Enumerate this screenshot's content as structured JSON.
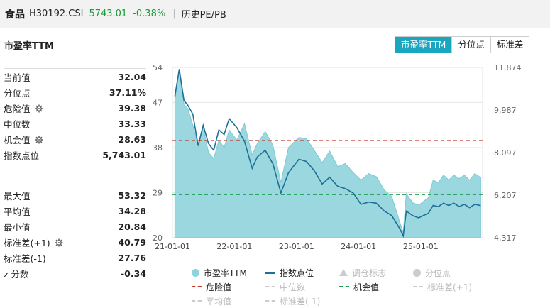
{
  "header": {
    "name": "食品",
    "code": "H30192.CSI",
    "price": "5743.01",
    "change": "-0.38%",
    "separator": "|",
    "metric": "历史PE/PB"
  },
  "panel": {
    "title": "市盈率TTM",
    "tabs": [
      {
        "label": "市盈率TTM",
        "active": true
      },
      {
        "label": "分位点",
        "active": false
      },
      {
        "label": "标准差",
        "active": false
      }
    ]
  },
  "stats_top": [
    {
      "label": "当前值",
      "value": "32.04",
      "gear": false
    },
    {
      "label": "分位点",
      "value": "37.11%",
      "gear": false
    },
    {
      "label": "危险值",
      "value": "39.38",
      "gear": true
    },
    {
      "label": "中位数",
      "value": "33.33",
      "gear": false
    },
    {
      "label": "机会值",
      "value": "28.63",
      "gear": true
    },
    {
      "label": "指数点位",
      "value": "5,743.01",
      "gear": false
    }
  ],
  "stats_bottom": [
    {
      "label": "最大值",
      "value": "53.32",
      "gear": false
    },
    {
      "label": "平均值",
      "value": "34.28",
      "gear": false
    },
    {
      "label": "最小值",
      "value": "20.84",
      "gear": false
    },
    {
      "label": "标准差(+1)",
      "value": "40.79",
      "gear": true
    },
    {
      "label": "标准差(-1)",
      "value": "27.76",
      "gear": false
    },
    {
      "label": "z 分数",
      "value": "-0.34",
      "gear": false
    }
  ],
  "legend": [
    [
      {
        "label": "市盈率TTM",
        "kind": "circle",
        "color": "#8fd3dc",
        "dim": false
      },
      {
        "label": "指数点位",
        "kind": "line",
        "color": "#1f6f96",
        "dim": false
      },
      {
        "label": "调仓标志",
        "kind": "triangle",
        "color": "#cccccc",
        "dim": true
      },
      {
        "label": "分位点",
        "kind": "circle",
        "color": "#cccccc",
        "dim": true
      }
    ],
    [
      {
        "label": "危险值",
        "kind": "dash",
        "color": "#c0392b",
        "dim": false
      },
      {
        "label": "中位数",
        "kind": "dash",
        "color": "#cccccc",
        "dim": true
      },
      {
        "label": "机会值",
        "kind": "dash",
        "color": "#1e9e50",
        "dim": false
      },
      {
        "label": "标准差(+1)",
        "kind": "dash",
        "color": "#cccccc",
        "dim": true
      }
    ],
    [
      {
        "label": "平均值",
        "kind": "dash",
        "color": "#cccccc",
        "dim": true
      },
      {
        "label": "标准差(-1)",
        "kind": "dash",
        "color": "#cccccc",
        "dim": true
      }
    ]
  ],
  "chart_data": {
    "type": "area",
    "x_ticks": [
      "21-01-01",
      "22-01-01",
      "23-01-01",
      "24-01-01",
      "25-01-01"
    ],
    "y_left_ticks": [
      "54",
      "47",
      "38",
      "29",
      "20"
    ],
    "y_right_ticks": [
      "11,874",
      "9,987",
      "8,097",
      "6,207",
      "4,317"
    ],
    "y_left_range": [
      20,
      54
    ],
    "y_right_range": [
      4317,
      11874
    ],
    "x_range": [
      "2021-01-01",
      "2025-12-31"
    ],
    "reference_lines": [
      {
        "name": "危险值",
        "value": 39.38,
        "color": "#c0392b"
      },
      {
        "name": "机会值",
        "value": 28.63,
        "color": "#1e9e50"
      }
    ],
    "series": [
      {
        "name": "市盈率TTM",
        "axis": "left",
        "color": "#8fd3dc",
        "points": [
          [
            "2021-01-15",
            47.5
          ],
          [
            "2021-02-10",
            53.3
          ],
          [
            "2021-03-10",
            46.5
          ],
          [
            "2021-04-01",
            45.8
          ],
          [
            "2021-05-01",
            42.5
          ],
          [
            "2021-06-01",
            38.3
          ],
          [
            "2021-07-01",
            42.0
          ],
          [
            "2021-08-01",
            37.0
          ],
          [
            "2021-09-01",
            35.8
          ],
          [
            "2021-10-01",
            39.5
          ],
          [
            "2021-11-01",
            38.0
          ],
          [
            "2021-12-01",
            41.5
          ],
          [
            "2022-01-15",
            39.5
          ],
          [
            "2022-03-01",
            42.8
          ],
          [
            "2022-04-15",
            36.5
          ],
          [
            "2022-05-15",
            38.8
          ],
          [
            "2022-07-01",
            41.2
          ],
          [
            "2022-08-15",
            38.5
          ],
          [
            "2022-10-01",
            31.0
          ],
          [
            "2022-11-15",
            38.0
          ],
          [
            "2023-01-15",
            40.0
          ],
          [
            "2023-03-01",
            39.8
          ],
          [
            "2023-04-15",
            37.5
          ],
          [
            "2023-06-01",
            35.0
          ],
          [
            "2023-07-15",
            37.3
          ],
          [
            "2023-09-01",
            34.2
          ],
          [
            "2023-10-15",
            34.8
          ],
          [
            "2023-12-01",
            33.0
          ],
          [
            "2024-01-15",
            31.5
          ],
          [
            "2024-03-01",
            32.8
          ],
          [
            "2024-04-15",
            32.2
          ],
          [
            "2024-06-01",
            29.5
          ],
          [
            "2024-07-15",
            28.2
          ],
          [
            "2024-09-01",
            23.0
          ],
          [
            "2024-09-20",
            21.0
          ],
          [
            "2024-10-08",
            28.8
          ],
          [
            "2024-11-15",
            27.0
          ],
          [
            "2024-12-20",
            26.5
          ],
          [
            "2025-01-15",
            27.2
          ],
          [
            "2025-02-15",
            28.0
          ],
          [
            "2025-03-15",
            31.5
          ],
          [
            "2025-04-15",
            31.0
          ],
          [
            "2025-05-15",
            32.5
          ],
          [
            "2025-06-15",
            31.5
          ],
          [
            "2025-07-15",
            32.5
          ],
          [
            "2025-08-15",
            31.8
          ],
          [
            "2025-09-15",
            32.5
          ],
          [
            "2025-10-15",
            31.5
          ],
          [
            "2025-11-15",
            32.8
          ],
          [
            "2025-12-20",
            32.0
          ]
        ]
      },
      {
        "name": "指数点位",
        "axis": "right",
        "color": "#1f6f96",
        "points": [
          [
            "2021-01-15",
            10600
          ],
          [
            "2021-02-10",
            11800
          ],
          [
            "2021-03-10",
            10400
          ],
          [
            "2021-04-01",
            10200
          ],
          [
            "2021-05-01",
            9800
          ],
          [
            "2021-06-01",
            8400
          ],
          [
            "2021-07-01",
            9300
          ],
          [
            "2021-08-01",
            8500
          ],
          [
            "2021-09-01",
            8200
          ],
          [
            "2021-10-01",
            9100
          ],
          [
            "2021-11-01",
            8900
          ],
          [
            "2021-12-01",
            9600
          ],
          [
            "2022-01-15",
            9200
          ],
          [
            "2022-03-01",
            8600
          ],
          [
            "2022-04-15",
            7400
          ],
          [
            "2022-05-15",
            7900
          ],
          [
            "2022-07-01",
            8200
          ],
          [
            "2022-08-15",
            7600
          ],
          [
            "2022-10-01",
            6300
          ],
          [
            "2022-11-15",
            7200
          ],
          [
            "2023-01-15",
            7800
          ],
          [
            "2023-03-01",
            7700
          ],
          [
            "2023-04-15",
            7300
          ],
          [
            "2023-06-01",
            6700
          ],
          [
            "2023-07-15",
            7000
          ],
          [
            "2023-09-01",
            6600
          ],
          [
            "2023-10-15",
            6500
          ],
          [
            "2023-12-01",
            6300
          ],
          [
            "2024-01-15",
            5800
          ],
          [
            "2024-03-01",
            5900
          ],
          [
            "2024-04-15",
            5850
          ],
          [
            "2024-06-01",
            5500
          ],
          [
            "2024-07-15",
            5300
          ],
          [
            "2024-09-01",
            4700
          ],
          [
            "2024-09-20",
            4400
          ],
          [
            "2024-10-08",
            5500
          ],
          [
            "2024-11-15",
            5300
          ],
          [
            "2024-12-20",
            5200
          ],
          [
            "2025-01-15",
            5300
          ],
          [
            "2025-02-15",
            5400
          ],
          [
            "2025-03-15",
            5750
          ],
          [
            "2025-04-15",
            5700
          ],
          [
            "2025-05-15",
            5850
          ],
          [
            "2025-06-15",
            5750
          ],
          [
            "2025-07-15",
            5850
          ],
          [
            "2025-08-15",
            5700
          ],
          [
            "2025-09-15",
            5800
          ],
          [
            "2025-10-15",
            5650
          ],
          [
            "2025-11-15",
            5800
          ],
          [
            "2025-12-20",
            5743
          ]
        ]
      }
    ]
  }
}
